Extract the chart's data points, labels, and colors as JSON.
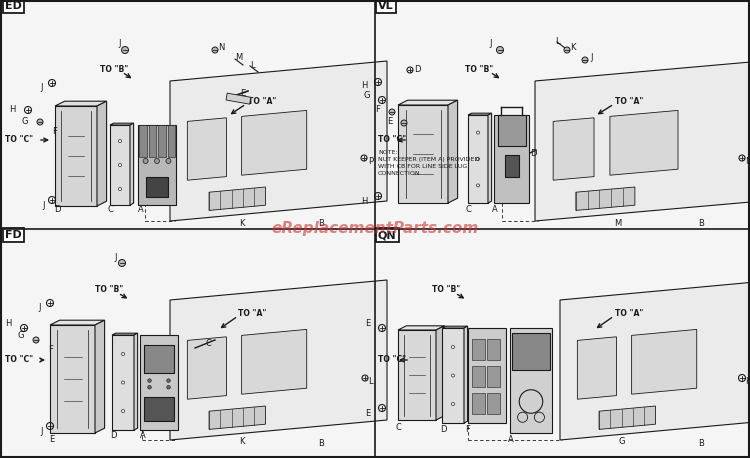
{
  "bg_color": "#f5f5f5",
  "line_color": "#1a1a1a",
  "text_color": "#1a1a1a",
  "watermark": "eReplacementParts.com",
  "watermark_color": "#cc3333",
  "watermark_alpha": 0.6,
  "watermark_fontsize": 11,
  "figsize": [
    7.5,
    4.58
  ],
  "dpi": 100,
  "panels": [
    "ED",
    "VL",
    "FD",
    "QN"
  ]
}
